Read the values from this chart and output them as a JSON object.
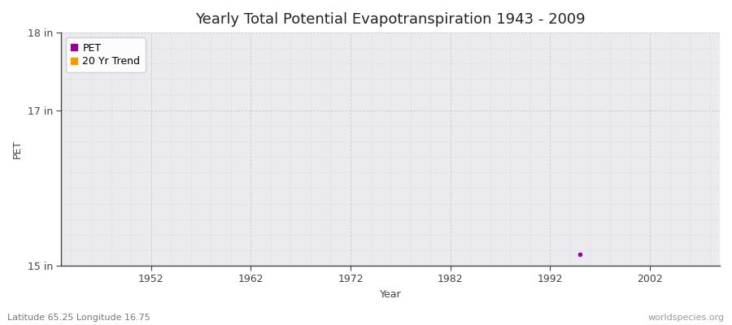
{
  "title": "Yearly Total Potential Evapotranspiration 1943 - 2009",
  "xlabel": "Year",
  "ylabel": "PET",
  "xlim_left": 1943,
  "xlim_right": 2009,
  "ylim_bottom": 15,
  "ylim_top": 18,
  "yticks": [
    15,
    17,
    18
  ],
  "ytick_labels": [
    "15 in",
    "17 in",
    "18 in"
  ],
  "xticks": [
    1952,
    1962,
    1972,
    1982,
    1992,
    2002
  ],
  "pet_point_x": 1995,
  "pet_point_y": 15.15,
  "pet_color": "#990099",
  "trend_color": "#ff9900",
  "fig_bg_color": "#ffffff",
  "plot_bg_color": "#ebebef",
  "grid_color_major": "#c8c8d0",
  "grid_color_minor": "#d8d8e0",
  "spine_color": "#444444",
  "tick_color": "#444444",
  "title_fontsize": 13,
  "axis_label_fontsize": 9,
  "tick_fontsize": 9,
  "legend_fontsize": 9,
  "footer_left": "Latitude 65.25 Longitude 16.75",
  "footer_right": "worldspecies.org",
  "footer_fontsize": 8
}
